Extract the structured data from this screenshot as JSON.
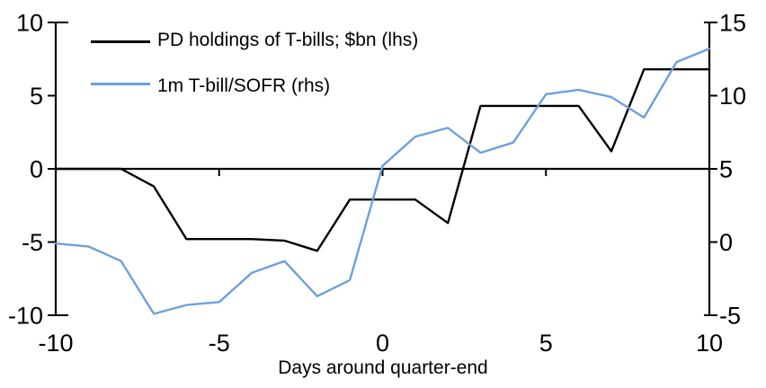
{
  "chart_data": {
    "type": "line",
    "title": "",
    "xlabel": "Days around quarter-end",
    "grid": false,
    "legend_position": "top-left",
    "x": [
      -10,
      -9,
      -8,
      -7,
      -6,
      -5,
      -4,
      -3,
      -2,
      -1,
      0,
      1,
      2,
      3,
      4,
      5,
      6,
      7,
      8,
      9,
      10
    ],
    "axes": {
      "x": {
        "ticks": [
          -10,
          -5,
          0,
          5,
          10
        ],
        "lim": [
          -10,
          10
        ]
      },
      "left": {
        "ticks": [
          10,
          5,
          0,
          -5,
          -10
        ],
        "lim": [
          -10,
          10
        ]
      },
      "right": {
        "ticks": [
          15,
          10,
          5,
          0,
          -5
        ],
        "lim": [
          -5,
          15
        ]
      }
    },
    "series": [
      {
        "name": "PD holdings of T-bills; $bn (lhs)",
        "axis": "left",
        "color": "#000000",
        "values": [
          0.0,
          0.0,
          0.0,
          -1.2,
          -4.8,
          -4.8,
          -4.8,
          -4.9,
          -5.6,
          -2.1,
          -2.1,
          -2.1,
          -3.7,
          4.3,
          4.3,
          4.3,
          4.3,
          1.2,
          6.8,
          6.8,
          6.8
        ]
      },
      {
        "name": "1m T-bill/SOFR (rhs)",
        "axis": "right",
        "color": "#6CA0DC",
        "values": [
          -0.1,
          -0.3,
          -1.3,
          -4.9,
          -4.3,
          -4.1,
          -2.1,
          -1.3,
          -3.7,
          -2.6,
          5.2,
          7.2,
          7.8,
          6.1,
          6.8,
          10.1,
          10.4,
          9.9,
          8.5,
          12.3,
          13.2
        ]
      }
    ]
  },
  "colors": {
    "axis": "#000000",
    "background": "#ffffff"
  }
}
